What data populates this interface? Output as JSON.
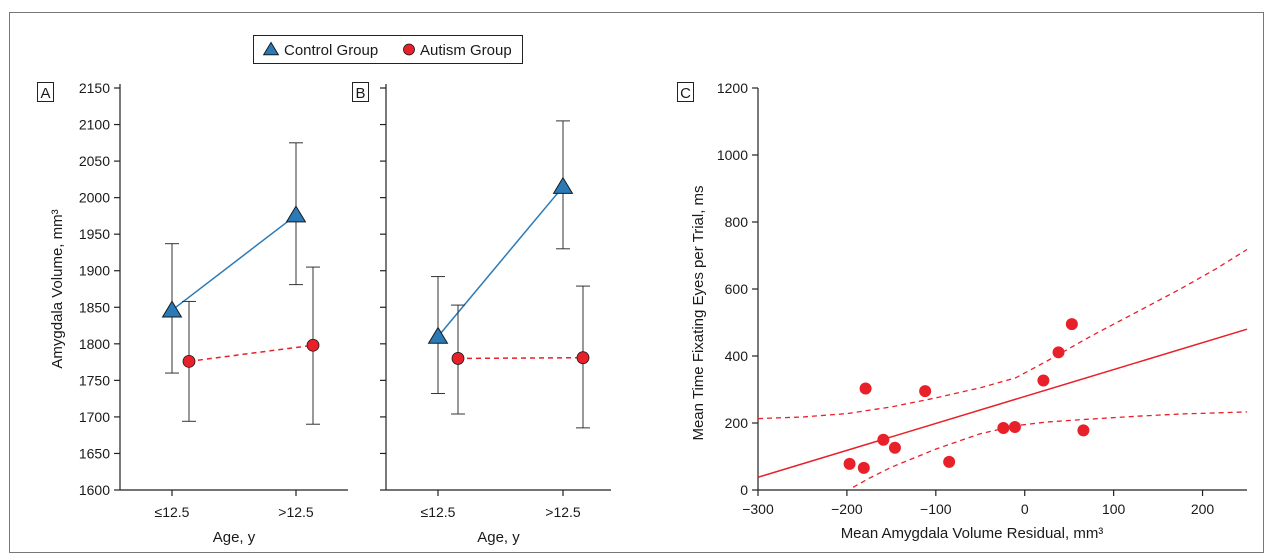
{
  "colors": {
    "control": "#2a7ab8",
    "autism": "#e8202a",
    "axis": "#222222",
    "errorbar": "#333333"
  },
  "legend": {
    "items": [
      {
        "label": "Control Group",
        "marker": "triangle",
        "color": "#2a7ab8"
      },
      {
        "label": "Autism Group",
        "marker": "circle",
        "color": "#e8202a"
      }
    ],
    "placement": "top-center"
  },
  "chart_data": [
    {
      "panel": "A",
      "type": "line",
      "categories": [
        "≤12.5",
        ">12.5"
      ],
      "xlabel": "Age, y",
      "ylabel": "Amygdala Volume, mm³",
      "ylim": [
        1600,
        2150
      ],
      "yticks": [
        1600,
        1650,
        1700,
        1750,
        1800,
        1850,
        1900,
        1950,
        2000,
        2050,
        2100,
        2150
      ],
      "series": [
        {
          "name": "Control Group",
          "values": [
            1846,
            1976
          ],
          "err_low": [
            1760,
            1881
          ],
          "err_high": [
            1937,
            2075
          ],
          "style": "solid",
          "marker": "triangle"
        },
        {
          "name": "Autism Group",
          "values": [
            1776,
            1798
          ],
          "err_low": [
            1694,
            1690
          ],
          "err_high": [
            1858,
            1905
          ],
          "style": "dashed",
          "marker": "circle"
        }
      ]
    },
    {
      "panel": "B",
      "type": "line",
      "categories": [
        "≤12.5",
        ">12.5"
      ],
      "xlabel": "Age, y",
      "ylabel": "",
      "ylim": [
        1600,
        2150
      ],
      "yticks": [
        1600,
        1650,
        1700,
        1750,
        1800,
        1850,
        1900,
        1950,
        2000,
        2050,
        2100,
        2150
      ],
      "series": [
        {
          "name": "Control Group",
          "values": [
            1810,
            2015
          ],
          "err_low": [
            1732,
            1930
          ],
          "err_high": [
            1892,
            2105
          ],
          "style": "solid",
          "marker": "triangle"
        },
        {
          "name": "Autism Group",
          "values": [
            1780,
            1781
          ],
          "err_low": [
            1704,
            1685
          ],
          "err_high": [
            1853,
            1879
          ],
          "style": "dashed",
          "marker": "circle"
        }
      ]
    },
    {
      "panel": "C",
      "type": "scatter",
      "xlabel": "Mean Amygdala Volume Residual, mm³",
      "ylabel": "Mean Time Fixating Eyes per Trial, ms",
      "xlim": [
        -300,
        250
      ],
      "ylim": [
        0,
        1200
      ],
      "xticks": [
        -300,
        -200,
        -100,
        0,
        100,
        200
      ],
      "xtick_labels": [
        "−300",
        "−200",
        "−100",
        "0",
        "100",
        "200"
      ],
      "yticks": [
        0,
        200,
        400,
        600,
        800,
        1000,
        1200
      ],
      "points": [
        {
          "x": -197,
          "y": 78
        },
        {
          "x": -181,
          "y": 66
        },
        {
          "x": -179,
          "y": 303
        },
        {
          "x": -159,
          "y": 150
        },
        {
          "x": -146,
          "y": 126
        },
        {
          "x": -112,
          "y": 295
        },
        {
          "x": -85,
          "y": 84
        },
        {
          "x": -24,
          "y": 185
        },
        {
          "x": -11,
          "y": 188
        },
        {
          "x": 21,
          "y": 327
        },
        {
          "x": 38,
          "y": 411
        },
        {
          "x": 53,
          "y": 495
        },
        {
          "x": 66,
          "y": 178
        }
      ],
      "fit_line": [
        [
          -300,
          38
        ],
        [
          250,
          480
        ]
      ],
      "ci_upper": [
        [
          -300,
          213
        ],
        [
          -250,
          218
        ],
        [
          -200,
          228
        ],
        [
          -150,
          248
        ],
        [
          -100,
          275
        ],
        [
          -50,
          305
        ],
        [
          -10,
          335
        ],
        [
          25,
          385
        ],
        [
          75,
          460
        ],
        [
          125,
          530
        ],
        [
          175,
          600
        ],
        [
          215,
          660
        ],
        [
          250,
          718
        ]
      ],
      "ci_lower": [
        [
          -193,
          8
        ],
        [
          -175,
          35
        ],
        [
          -150,
          68
        ],
        [
          -100,
          122
        ],
        [
          -50,
          168
        ],
        [
          -10,
          192
        ],
        [
          25,
          203
        ],
        [
          75,
          212
        ],
        [
          125,
          220
        ],
        [
          175,
          227
        ],
        [
          215,
          230
        ],
        [
          250,
          233
        ]
      ]
    }
  ]
}
